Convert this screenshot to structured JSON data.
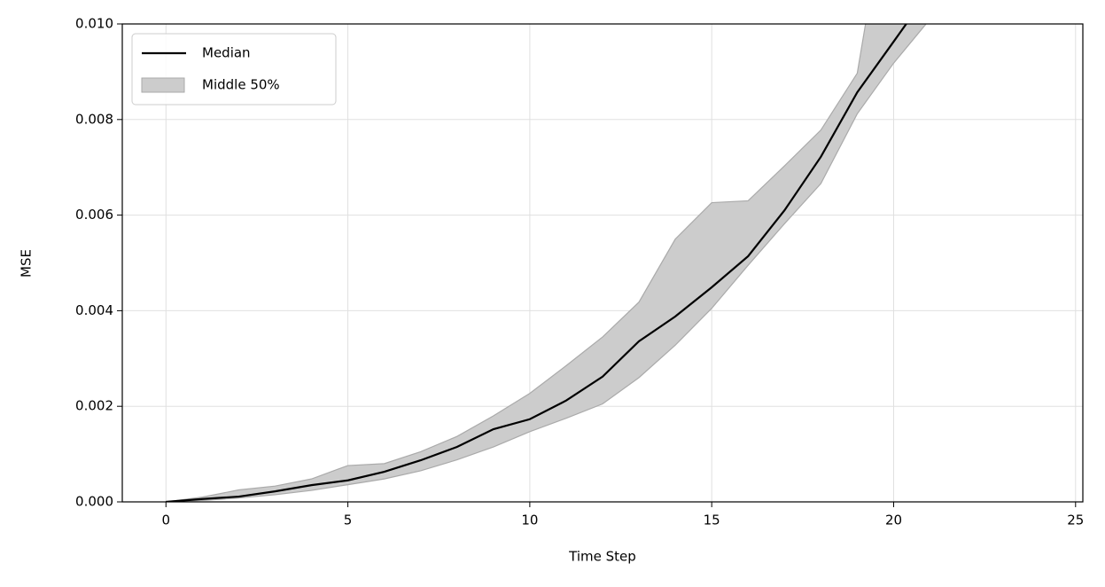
{
  "chart_data": {
    "type": "line",
    "xlabel": "Time Step",
    "ylabel": "MSE",
    "x": [
      0,
      1,
      2,
      3,
      4,
      5,
      6,
      7,
      8,
      9,
      10,
      11,
      12,
      13,
      14,
      15,
      16,
      17,
      18,
      19,
      20,
      21
    ],
    "series": [
      {
        "name": "Median",
        "color": "#000000",
        "values": [
          0,
          6e-05,
          0.00011,
          0.00022,
          0.00035,
          0.00045,
          0.00063,
          0.00087,
          0.00115,
          0.00152,
          0.00173,
          0.00212,
          0.00262,
          0.00336,
          0.00388,
          0.00449,
          0.00514,
          0.0061,
          0.00722,
          0.00857,
          0.00963,
          0.0107
        ]
      }
    ],
    "bands": [
      {
        "name": "Middle 50%",
        "color": "#cccccc",
        "upper": [
          0,
          0.0001,
          0.00025,
          0.00033,
          0.00048,
          0.00076,
          0.0008,
          0.00105,
          0.00137,
          0.0018,
          0.00227,
          0.00285,
          0.00345,
          0.00418,
          0.0055,
          0.00626,
          0.0063,
          0.00703,
          0.00778,
          0.00897,
          0.0135,
          0.015
        ],
        "lower": [
          0,
          3e-05,
          8e-05,
          0.00015,
          0.00024,
          0.00036,
          0.00048,
          0.00065,
          0.00088,
          0.00115,
          0.00147,
          0.00175,
          0.00205,
          0.0026,
          0.00328,
          0.00405,
          0.00495,
          0.00582,
          0.00666,
          0.00812,
          0.00918,
          0.0101
        ]
      }
    ],
    "xlim": [
      -1.2,
      25.2
    ],
    "ylim": [
      0,
      0.01
    ],
    "xticks": [
      0,
      5,
      10,
      15,
      20,
      25
    ],
    "yticks": [
      {
        "value": 0,
        "label": "0.000"
      },
      {
        "value": 0.002,
        "label": "0.002"
      },
      {
        "value": 0.004,
        "label": "0.004"
      },
      {
        "value": 0.006,
        "label": "0.006"
      },
      {
        "value": 0.008,
        "label": "0.008"
      },
      {
        "value": 0.01,
        "label": "0.010"
      }
    ],
    "grid": true,
    "legend": "upper left"
  }
}
